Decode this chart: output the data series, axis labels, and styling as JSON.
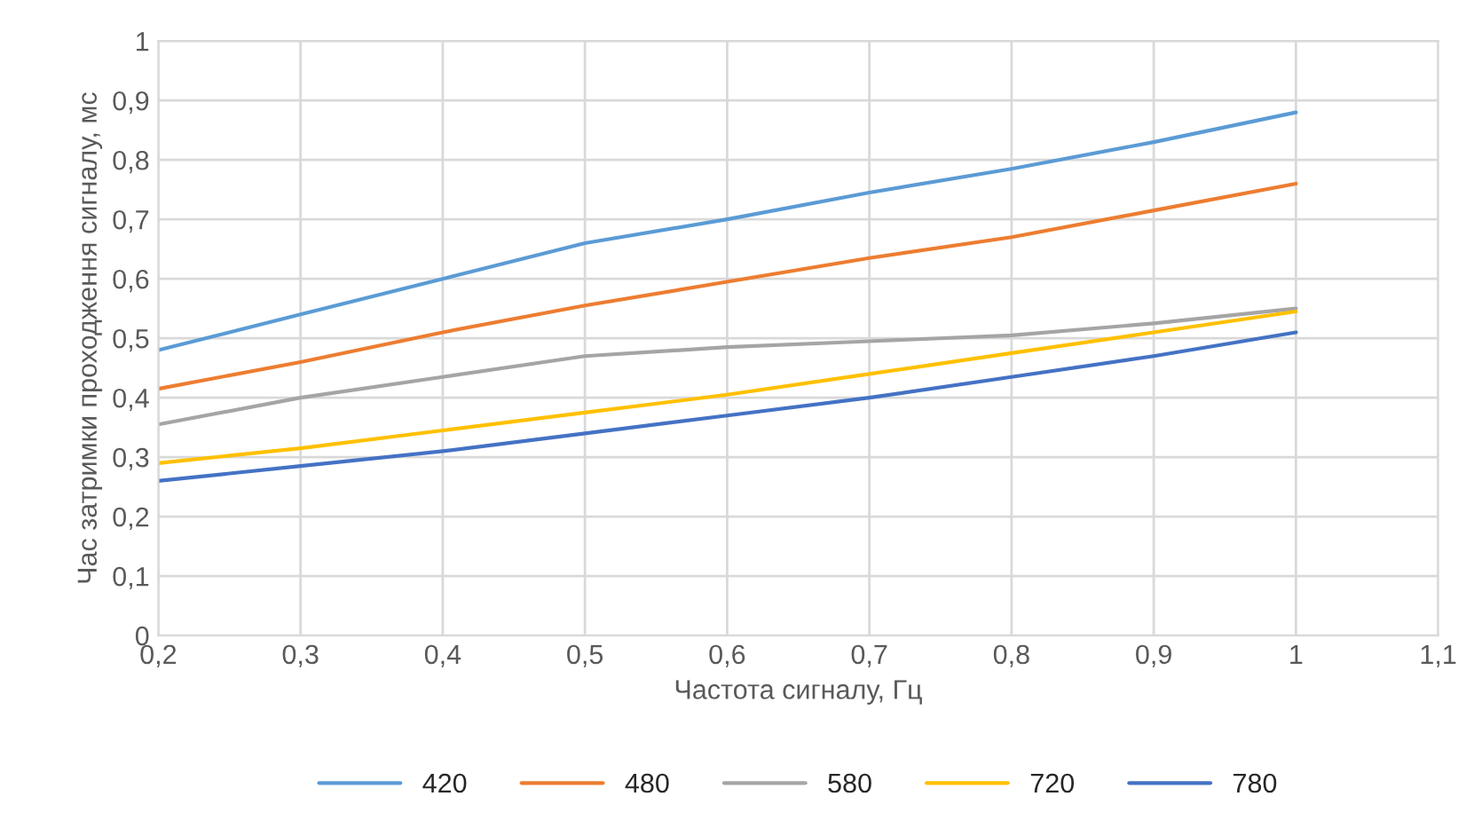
{
  "chart_data": {
    "type": "line",
    "xlabel": "Частота сигналу, Гц",
    "ylabel": "Час затримки проходження сигналу, мс",
    "x": [
      0.2,
      0.3,
      0.4,
      0.5,
      0.6,
      0.7,
      0.8,
      0.9,
      1.0
    ],
    "series": [
      {
        "name": "420",
        "color": "#5b9bd5",
        "values": [
          0.48,
          0.54,
          0.6,
          0.66,
          0.7,
          0.745,
          0.785,
          0.83,
          0.88
        ]
      },
      {
        "name": "480",
        "color": "#ed7d31",
        "values": [
          0.415,
          0.46,
          0.51,
          0.555,
          0.595,
          0.635,
          0.67,
          0.715,
          0.76
        ]
      },
      {
        "name": "580",
        "color": "#a5a5a5",
        "values": [
          0.355,
          0.4,
          0.435,
          0.47,
          0.485,
          0.495,
          0.505,
          0.525,
          0.55
        ]
      },
      {
        "name": "720",
        "color": "#ffc000",
        "values": [
          0.29,
          0.315,
          0.345,
          0.375,
          0.405,
          0.44,
          0.475,
          0.51,
          0.545
        ]
      },
      {
        "name": "780",
        "color": "#4472c4",
        "values": [
          0.26,
          0.285,
          0.31,
          0.34,
          0.37,
          0.4,
          0.435,
          0.47,
          0.51
        ]
      }
    ],
    "xlim": [
      0.2,
      1.1
    ],
    "xticks": [
      {
        "value": 0.2,
        "label": "0,2"
      },
      {
        "value": 0.3,
        "label": "0,3"
      },
      {
        "value": 0.4,
        "label": "0,4"
      },
      {
        "value": 0.5,
        "label": "0,5"
      },
      {
        "value": 0.6,
        "label": "0,6"
      },
      {
        "value": 0.7,
        "label": "0,7"
      },
      {
        "value": 0.8,
        "label": "0,8"
      },
      {
        "value": 0.9,
        "label": "0,9"
      },
      {
        "value": 1.0,
        "label": "1"
      },
      {
        "value": 1.1,
        "label": "1,1"
      }
    ],
    "ylim": [
      0,
      1
    ],
    "yticks": [
      0,
      {
        "value": 0.1,
        "label": "0,1"
      },
      {
        "value": 0.2,
        "label": "0,2"
      },
      {
        "value": 0.3,
        "label": "0,3"
      },
      {
        "value": 0.4,
        "label": "0,4"
      },
      {
        "value": 0.5,
        "label": "0,5"
      },
      {
        "value": 0.6,
        "label": "0,6"
      },
      {
        "value": 0.7,
        "label": "0,7"
      },
      {
        "value": 0.8,
        "label": "0,8"
      },
      {
        "value": 0.9,
        "label": "0,9"
      },
      1
    ],
    "grid": true,
    "legend": "bottom",
    "line_style": "solid"
  }
}
